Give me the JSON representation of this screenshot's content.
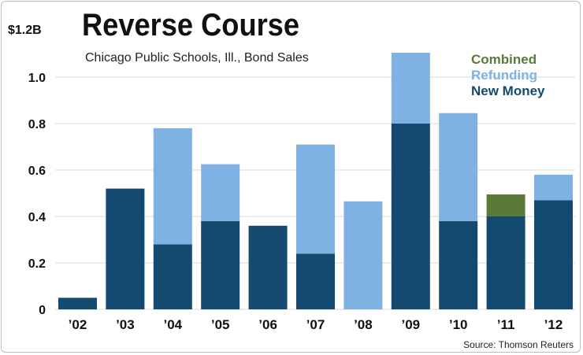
{
  "chart_data": {
    "type": "bar",
    "stacked": true,
    "title": "Reverse Course",
    "subtitle": "Chicago Public Schools, Ill., Bond Sales",
    "y_max_label": "$1.2B",
    "ylim": [
      0,
      1.2
    ],
    "y_ticks": [
      0,
      0.2,
      0.4,
      0.6,
      0.8,
      1.0
    ],
    "y_tick_labels": [
      "0",
      "0.2",
      "0.4",
      "0.6",
      "0.8",
      "1.0"
    ],
    "categories": [
      "’02",
      "’03",
      "’04",
      "’05",
      "’06",
      "’07",
      "’08",
      "’09",
      "’10",
      "’11",
      "’12"
    ],
    "series": [
      {
        "name": "New Money",
        "color": "#154a70",
        "values": [
          0.05,
          0.52,
          0.28,
          0.38,
          0.36,
          0.24,
          0.0,
          0.8,
          0.38,
          0.4,
          0.47
        ]
      },
      {
        "name": "Refunding",
        "color": "#7fb2e2",
        "values": [
          0.0,
          0.0,
          0.5,
          0.245,
          0.0,
          0.47,
          0.465,
          0.305,
          0.465,
          0.0,
          0.11
        ]
      },
      {
        "name": "Combined",
        "color": "#5b7a37",
        "values": [
          0.0,
          0.0,
          0.0,
          0.0,
          0.0,
          0.0,
          0.0,
          0.0,
          0.0,
          0.095,
          0.0
        ]
      }
    ],
    "legend": {
      "position": "top-right",
      "entries": [
        "Combined",
        "Refunding",
        "New Money"
      ]
    },
    "grid": true,
    "source": "Source: Thomson Reuters"
  }
}
